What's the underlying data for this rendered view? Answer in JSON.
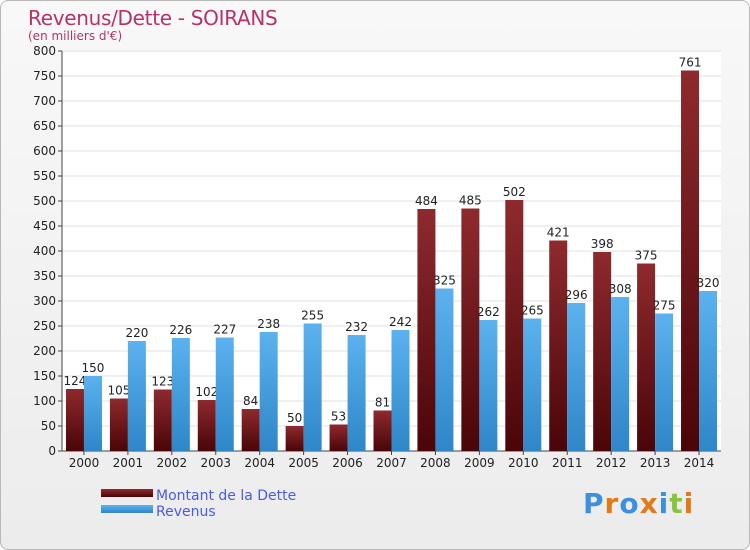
{
  "title": "Revenus/Dette - SOIRANS",
  "subtitle": "(en milliers d'€)",
  "logo": "Proxiti",
  "colors": {
    "dette": "#7a1518",
    "revenus": "#3f9fe0",
    "title": "#b8326a",
    "legend": "#4a5be6"
  },
  "chart_data": {
    "type": "bar",
    "categories": [
      "2000",
      "2001",
      "2002",
      "2003",
      "2004",
      "2005",
      "2006",
      "2007",
      "2008",
      "2009",
      "2010",
      "2011",
      "2012",
      "2013",
      "2014"
    ],
    "series": [
      {
        "name": "Montant de la Dette",
        "values": [
          124,
          105,
          123,
          102,
          84,
          50,
          53,
          81,
          484,
          485,
          502,
          421,
          398,
          375,
          761
        ]
      },
      {
        "name": "Revenus",
        "values": [
          150,
          220,
          226,
          227,
          238,
          255,
          232,
          242,
          325,
          262,
          265,
          296,
          308,
          275,
          320
        ]
      }
    ],
    "ylim": [
      0,
      800
    ],
    "yticks": [
      0,
      50,
      100,
      150,
      200,
      250,
      300,
      350,
      400,
      450,
      500,
      550,
      600,
      650,
      700,
      750,
      800
    ],
    "grid": true,
    "legend": "bottom-left"
  }
}
